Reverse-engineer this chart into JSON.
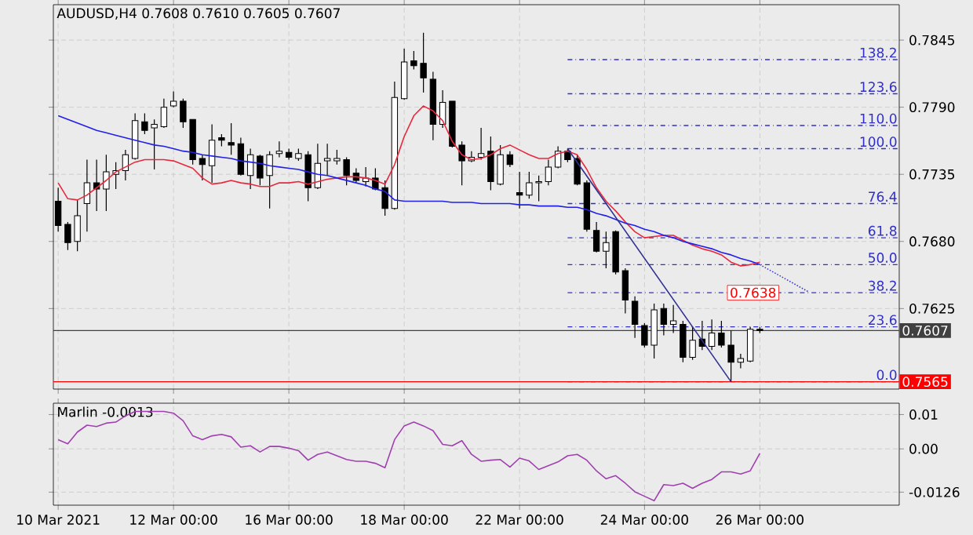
{
  "chart_data": [
    {
      "type": "candlestick",
      "title": "AUDUSD,H4 0.7608 0.7610 0.7605 0.7607",
      "categories": [
        null,
        null,
        null,
        null,
        null,
        null,
        null,
        null,
        null,
        null,
        null,
        null,
        null,
        null,
        null,
        null,
        null,
        null,
        null,
        null,
        null,
        null,
        null,
        null,
        null,
        null,
        null,
        null,
        null,
        null,
        null,
        null,
        null,
        null,
        null,
        null,
        null,
        null,
        null,
        null,
        null,
        null,
        null,
        null,
        null,
        null,
        null,
        null,
        null,
        null,
        null,
        null,
        null,
        null,
        null,
        null,
        null,
        null,
        null,
        null,
        null,
        null,
        null,
        null,
        null,
        null,
        null,
        null,
        null,
        null,
        null,
        null,
        null,
        null,
        null,
        null,
        null,
        null,
        null,
        null,
        null,
        null,
        null,
        null,
        null,
        null,
        null,
        null
      ],
      "ohlc": [
        [
          0.7713,
          0.7724,
          0.7688,
          0.7693
        ],
        [
          0.7694,
          0.7696,
          0.7673,
          0.7679
        ],
        [
          0.768,
          0.7714,
          0.7672,
          0.7701
        ],
        [
          0.7711,
          0.7747,
          0.7688,
          0.7728
        ],
        [
          0.7728,
          0.7747,
          0.7705,
          0.7723
        ],
        [
          0.7723,
          0.7751,
          0.7705,
          0.7737
        ],
        [
          0.7735,
          0.7745,
          0.7723,
          0.7738
        ],
        [
          0.7738,
          0.7755,
          0.773,
          0.7751
        ],
        [
          0.7748,
          0.7785,
          0.7747,
          0.7779
        ],
        [
          0.7778,
          0.7785,
          0.7768,
          0.7771
        ],
        [
          0.7773,
          0.778,
          0.7739,
          0.7776
        ],
        [
          0.7774,
          0.7797,
          0.7773,
          0.779
        ],
        [
          0.7791,
          0.7803,
          0.779,
          0.7795
        ],
        [
          0.7795,
          0.7797,
          0.7773,
          0.7778
        ],
        [
          0.778,
          0.778,
          0.7743,
          0.7747
        ],
        [
          0.7748,
          0.7751,
          0.773,
          0.7743
        ],
        [
          0.7742,
          0.7776,
          0.7728,
          0.7763
        ],
        [
          0.7765,
          0.7768,
          0.7758,
          0.7763
        ],
        [
          0.7761,
          0.7777,
          0.7751,
          0.7759
        ],
        [
          0.776,
          0.7765,
          0.7734,
          0.7735
        ],
        [
          0.7734,
          0.7756,
          0.7723,
          0.7751
        ],
        [
          0.775,
          0.7751,
          0.7726,
          0.7732
        ],
        [
          0.7734,
          0.7754,
          0.7707,
          0.7751
        ],
        [
          0.7752,
          0.7762,
          0.7749,
          0.7754
        ],
        [
          0.7753,
          0.7756,
          0.7747,
          0.7749
        ],
        [
          0.7748,
          0.7756,
          0.7746,
          0.7752
        ],
        [
          0.7751,
          0.7754,
          0.7713,
          0.7724
        ],
        [
          0.7724,
          0.776,
          0.7723,
          0.7744
        ],
        [
          0.7746,
          0.776,
          0.7734,
          0.7748
        ],
        [
          0.7746,
          0.7755,
          0.7743,
          0.7748
        ],
        [
          0.7747,
          0.7749,
          0.7726,
          0.7734
        ],
        [
          0.7736,
          0.774,
          0.7728,
          0.773
        ],
        [
          0.7729,
          0.7741,
          0.7725,
          0.7732
        ],
        [
          0.7732,
          0.774,
          0.7722,
          0.7723
        ],
        [
          0.7724,
          0.773,
          0.7701,
          0.7707
        ],
        [
          0.7707,
          0.7811,
          0.7706,
          0.7798
        ],
        [
          0.7797,
          0.7838,
          0.7796,
          0.7827
        ],
        [
          0.7828,
          0.7836,
          0.7821,
          0.7824
        ],
        [
          0.7826,
          0.7851,
          0.7802,
          0.7814
        ],
        [
          0.7813,
          0.7819,
          0.7763,
          0.7776
        ],
        [
          0.7776,
          0.7804,
          0.7773,
          0.7794
        ],
        [
          0.7795,
          0.7795,
          0.7757,
          0.7758
        ],
        [
          0.7759,
          0.7762,
          0.7726,
          0.7746
        ],
        [
          0.7746,
          0.7754,
          0.7745,
          0.7749
        ],
        [
          0.7749,
          0.7773,
          0.7747,
          0.7752
        ],
        [
          0.7754,
          0.7766,
          0.7722,
          0.7729
        ],
        [
          0.7727,
          0.7759,
          0.7726,
          0.7751
        ],
        [
          0.7751,
          0.7754,
          0.7741,
          0.7743
        ],
        [
          0.772,
          0.7737,
          0.7707,
          0.7718
        ],
        [
          0.7718,
          0.7737,
          0.7715,
          0.7728
        ],
        [
          0.7728,
          0.7734,
          0.7713,
          0.7729
        ],
        [
          0.7729,
          0.7747,
          0.7726,
          0.7741
        ],
        [
          0.7741,
          0.7758,
          0.774,
          0.7754
        ],
        [
          0.7754,
          0.7756,
          0.7745,
          0.7747
        ],
        [
          0.7748,
          0.7751,
          0.7726,
          0.7727
        ],
        [
          0.7728,
          0.773,
          0.7688,
          0.769
        ],
        [
          0.7689,
          0.7696,
          0.7671,
          0.7672
        ],
        [
          0.7672,
          0.7688,
          0.7658,
          0.7679
        ],
        [
          0.7688,
          0.7689,
          0.7653,
          0.7655
        ],
        [
          0.7656,
          0.7658,
          0.7621,
          0.7632
        ],
        [
          0.7631,
          0.7635,
          0.7601,
          0.7612
        ],
        [
          0.7611,
          0.7613,
          0.7593,
          0.7595
        ],
        [
          0.7595,
          0.7629,
          0.7584,
          0.7624
        ],
        [
          0.7625,
          0.7629,
          0.7603,
          0.7612
        ],
        [
          0.7612,
          0.7628,
          0.7605,
          0.7615
        ],
        [
          0.7612,
          0.7615,
          0.7581,
          0.7585
        ],
        [
          0.7585,
          0.761,
          0.7583,
          0.7599
        ],
        [
          0.76,
          0.7615,
          0.7591,
          0.7594
        ],
        [
          0.7594,
          0.7616,
          0.7591,
          0.7605
        ],
        [
          0.7605,
          0.7615,
          0.7593,
          0.7595
        ],
        [
          0.7595,
          0.7607,
          0.7565,
          0.7581
        ],
        [
          0.7581,
          0.7588,
          0.7576,
          0.7584
        ],
        [
          0.7582,
          0.761,
          0.7581,
          0.7608
        ],
        [
          0.7608,
          0.761,
          0.7605,
          0.7607
        ],
        null,
        null,
        null,
        null,
        null,
        null,
        null,
        null,
        null,
        null,
        null,
        null,
        null,
        null
      ],
      "series": [
        {
          "type": "line",
          "color": "#e8283c",
          "values": [
            0.7728,
            0.7715,
            0.7714,
            0.7718,
            0.7724,
            0.773,
            0.7737,
            0.7741,
            0.7745,
            0.7747,
            0.7747,
            0.7747,
            0.7746,
            0.7743,
            0.774,
            0.7732,
            0.7727,
            0.7728,
            0.773,
            0.7728,
            0.7727,
            0.7725,
            0.7725,
            0.7728,
            0.7728,
            0.7729,
            0.7727,
            0.7729,
            0.7731,
            0.7732,
            0.7733,
            0.7733,
            0.7732,
            0.773,
            0.7727,
            0.7743,
            0.7766,
            0.7783,
            0.7791,
            0.7787,
            0.7779,
            0.7762,
            0.7751,
            0.7747,
            0.7748,
            0.7751,
            0.7756,
            0.7759,
            0.7755,
            0.7751,
            0.7748,
            0.7748,
            0.7752,
            0.7754,
            0.7751,
            0.7739,
            0.7724,
            0.7713,
            0.7705,
            0.7696,
            0.7688,
            0.7683,
            0.7684,
            0.7685,
            0.7685,
            0.7681,
            0.7677,
            0.7674,
            0.7672,
            0.7669,
            0.7663,
            0.766,
            0.7661,
            0.7663,
            null,
            null,
            null,
            null,
            null,
            null,
            null,
            null,
            null,
            null,
            null,
            null,
            null,
            null
          ]
        },
        {
          "type": "line",
          "color": "#2020e8",
          "values": [
            0.7783,
            0.778,
            0.7777,
            0.7774,
            0.7771,
            0.7769,
            0.7767,
            0.7765,
            0.7763,
            0.7761,
            0.7759,
            0.7758,
            0.7756,
            0.7754,
            0.7753,
            0.7751,
            0.775,
            0.7749,
            0.7748,
            0.7746,
            0.7745,
            0.7744,
            0.7742,
            0.7741,
            0.774,
            0.7739,
            0.7737,
            0.7735,
            0.7734,
            0.7732,
            0.773,
            0.7728,
            0.7726,
            0.7723,
            0.7721,
            0.7714,
            0.7713,
            0.7713,
            0.7713,
            0.7713,
            0.7713,
            0.7712,
            0.7712,
            0.7712,
            0.7711,
            0.7711,
            0.7711,
            0.7711,
            0.771,
            0.771,
            0.7709,
            0.7709,
            0.7709,
            0.7708,
            0.7708,
            0.7706,
            0.7703,
            0.7701,
            0.7698,
            0.7695,
            0.7693,
            0.769,
            0.7688,
            0.7685,
            0.7683,
            0.768,
            0.7678,
            0.7676,
            0.7674,
            0.7671,
            0.7669,
            0.7666,
            0.7664,
            0.7661,
            null,
            null,
            null,
            null,
            null,
            null,
            null,
            null,
            null,
            null,
            null,
            null,
            null,
            null
          ]
        },
        {
          "type": "line",
          "color": "#303090",
          "values": [
            null,
            null,
            null,
            null,
            null,
            null,
            null,
            null,
            null,
            null,
            null,
            null,
            null,
            null,
            null,
            null,
            null,
            null,
            null,
            null,
            null,
            null,
            null,
            null,
            null,
            null,
            null,
            null,
            null,
            null,
            null,
            null,
            null,
            null,
            null,
            null,
            null,
            null,
            null,
            null,
            null,
            null,
            null,
            null,
            null,
            null,
            null,
            null,
            null,
            null,
            null,
            null,
            null,
            0.7756,
            null,
            null,
            null,
            null,
            null,
            null,
            null,
            null,
            null,
            null,
            null,
            null,
            null,
            null,
            null,
            null,
            0.7565,
            null,
            null,
            null,
            null,
            null,
            null,
            null,
            null,
            null,
            null,
            null,
            null,
            null,
            null,
            null,
            null,
            null
          ]
        },
        {
          "type": "line",
          "color": "#3a3ad0",
          "line_style": "dotted",
          "values": [
            null,
            null,
            null,
            null,
            null,
            null,
            null,
            null,
            null,
            null,
            null,
            null,
            null,
            null,
            null,
            null,
            null,
            null,
            null,
            null,
            null,
            null,
            null,
            null,
            null,
            null,
            null,
            null,
            null,
            null,
            null,
            null,
            null,
            null,
            null,
            null,
            null,
            null,
            null,
            null,
            null,
            null,
            null,
            null,
            null,
            null,
            null,
            null,
            null,
            null,
            null,
            null,
            null,
            null,
            null,
            null,
            null,
            null,
            null,
            null,
            null,
            null,
            null,
            null,
            null,
            null,
            null,
            null,
            null,
            null,
            null,
            null,
            null,
            0.7661,
            null,
            null,
            null,
            null,
            0.7639,
            null,
            null,
            null,
            null,
            null,
            null,
            null,
            null,
            null
          ]
        }
      ],
      "ylim": [
        0.7559,
        0.7874
      ],
      "yticks": [
        {
          "value": 0.7625,
          "label": "0.7625"
        },
        {
          "value": 0.768,
          "label": "0.7680"
        },
        {
          "value": 0.7735,
          "label": "0.7735"
        },
        {
          "value": 0.779,
          "label": "0.7790"
        },
        {
          "value": 0.7845,
          "label": "0.7845"
        }
      ],
      "grid": true,
      "tick_labels": "y",
      "ref_lines": [
        {
          "axis": "y",
          "value": 0.7829,
          "color": "#3030c8",
          "line_style": "dashed"
        },
        {
          "axis": "y",
          "value": 0.7801,
          "color": "#3030c8",
          "line_style": "dashed"
        },
        {
          "axis": "y",
          "value": 0.7775,
          "color": "#3030c8",
          "line_style": "dashed"
        },
        {
          "axis": "y",
          "value": 0.7756,
          "color": "#3030c8",
          "line_style": "dashed"
        },
        {
          "axis": "y",
          "value": 0.7711,
          "color": "#3030c8",
          "line_style": "dashed"
        },
        {
          "axis": "y",
          "value": 0.7683,
          "color": "#3030c8",
          "line_style": "dashed"
        },
        {
          "axis": "y",
          "value": 0.7661,
          "color": "#3030c8",
          "line_style": "dashed"
        },
        {
          "axis": "y",
          "value": 0.7638,
          "color": "#3030c8",
          "line_style": "dashed"
        },
        {
          "axis": "y",
          "value": 0.761,
          "color": "#3030c8",
          "line_style": "dashed"
        },
        {
          "axis": "y",
          "value": 0.7565,
          "color": "#3030c8",
          "line_style": "dashed"
        },
        {
          "axis": "y",
          "value": 0.7607,
          "label": "0.7607",
          "color": "#404040",
          "line_style": "solid"
        },
        {
          "axis": "y",
          "value": 0.7565,
          "label": "0.7565",
          "color": "#ff0000",
          "line_style": "solid"
        }
      ],
      "annotations": [
        {
          "text": "138.2",
          "y": 0.7829
        },
        {
          "text": "123.6",
          "y": 0.7801
        },
        {
          "text": "110.0",
          "y": 0.7775
        },
        {
          "text": "100.0",
          "y": 0.7756
        },
        {
          "text": "76.4",
          "y": 0.7711
        },
        {
          "text": "61.8",
          "y": 0.7683
        },
        {
          "text": "50.0",
          "y": 0.7661
        },
        {
          "text": "38.2",
          "y": 0.7638
        },
        {
          "text": "23.6",
          "y": 0.761
        },
        {
          "text": "0.0",
          "y": 0.7565
        },
        {
          "text": "0.7638",
          "y": 0.7638
        }
      ]
    },
    {
      "type": "line",
      "title": "Marlin -0.0013",
      "categories": [
        "10 Mar 2021",
        null,
        null,
        null,
        null,
        null,
        null,
        null,
        null,
        null,
        null,
        null,
        "12 Mar 00:00",
        null,
        null,
        null,
        null,
        null,
        null,
        null,
        null,
        null,
        null,
        null,
        "16 Mar 00:00",
        null,
        null,
        null,
        null,
        null,
        null,
        null,
        null,
        null,
        null,
        null,
        "18 Mar 00:00",
        null,
        null,
        null,
        null,
        null,
        null,
        null,
        null,
        null,
        null,
        null,
        "22 Mar 00:00",
        null,
        null,
        null,
        null,
        null,
        null,
        null,
        null,
        null,
        null,
        null,
        null,
        "24 Mar 00:00",
        null,
        null,
        null,
        null,
        null,
        null,
        null,
        null,
        null,
        null,
        null,
        "26 Mar 00:00",
        null,
        null,
        null,
        null,
        null,
        null,
        null,
        null,
        null,
        null,
        null,
        null,
        null,
        null
      ],
      "series": [
        {
          "color": "#a040b0",
          "values": [
            0.0027,
            0.0015,
            0.0049,
            0.0069,
            0.0065,
            0.0075,
            0.0078,
            0.0096,
            0.0109,
            0.0109,
            0.0109,
            0.0109,
            0.0104,
            0.0082,
            0.0038,
            0.0027,
            0.0038,
            0.0042,
            0.0035,
            0.0005,
            0.0009,
            -0.0009,
            0.0007,
            0.0007,
            0.0002,
            -0.0005,
            -0.0033,
            -0.0016,
            -0.0009,
            -0.002,
            -0.0031,
            -0.0036,
            -0.0036,
            -0.0042,
            -0.0055,
            0.0027,
            0.0067,
            0.0078,
            0.0067,
            0.0053,
            0.0013,
            0.0009,
            0.0024,
            -0.0016,
            -0.0036,
            -0.0033,
            -0.0031,
            -0.0053,
            -0.0027,
            -0.0035,
            -0.006,
            -0.0049,
            -0.0038,
            -0.002,
            -0.0016,
            -0.0033,
            -0.0064,
            -0.0087,
            -0.0078,
            -0.01,
            -0.0125,
            -0.0138,
            -0.0151,
            -0.0104,
            -0.0107,
            -0.01,
            -0.0115,
            -0.01,
            -0.0089,
            -0.0067,
            -0.0067,
            -0.0073,
            -0.0064,
            -0.0013,
            null,
            null,
            null,
            null,
            null,
            null,
            null,
            null,
            null,
            null,
            null,
            null,
            null,
            null
          ]
        }
      ],
      "ylim": [
        -0.0164,
        0.0133
      ],
      "yticks": [
        {
          "value": -0.0126,
          "label": "-0.0126"
        },
        {
          "value": 0,
          "label": "0.00"
        },
        {
          "value": 0.01,
          "label": "0.01"
        }
      ],
      "grid": true
    }
  ]
}
